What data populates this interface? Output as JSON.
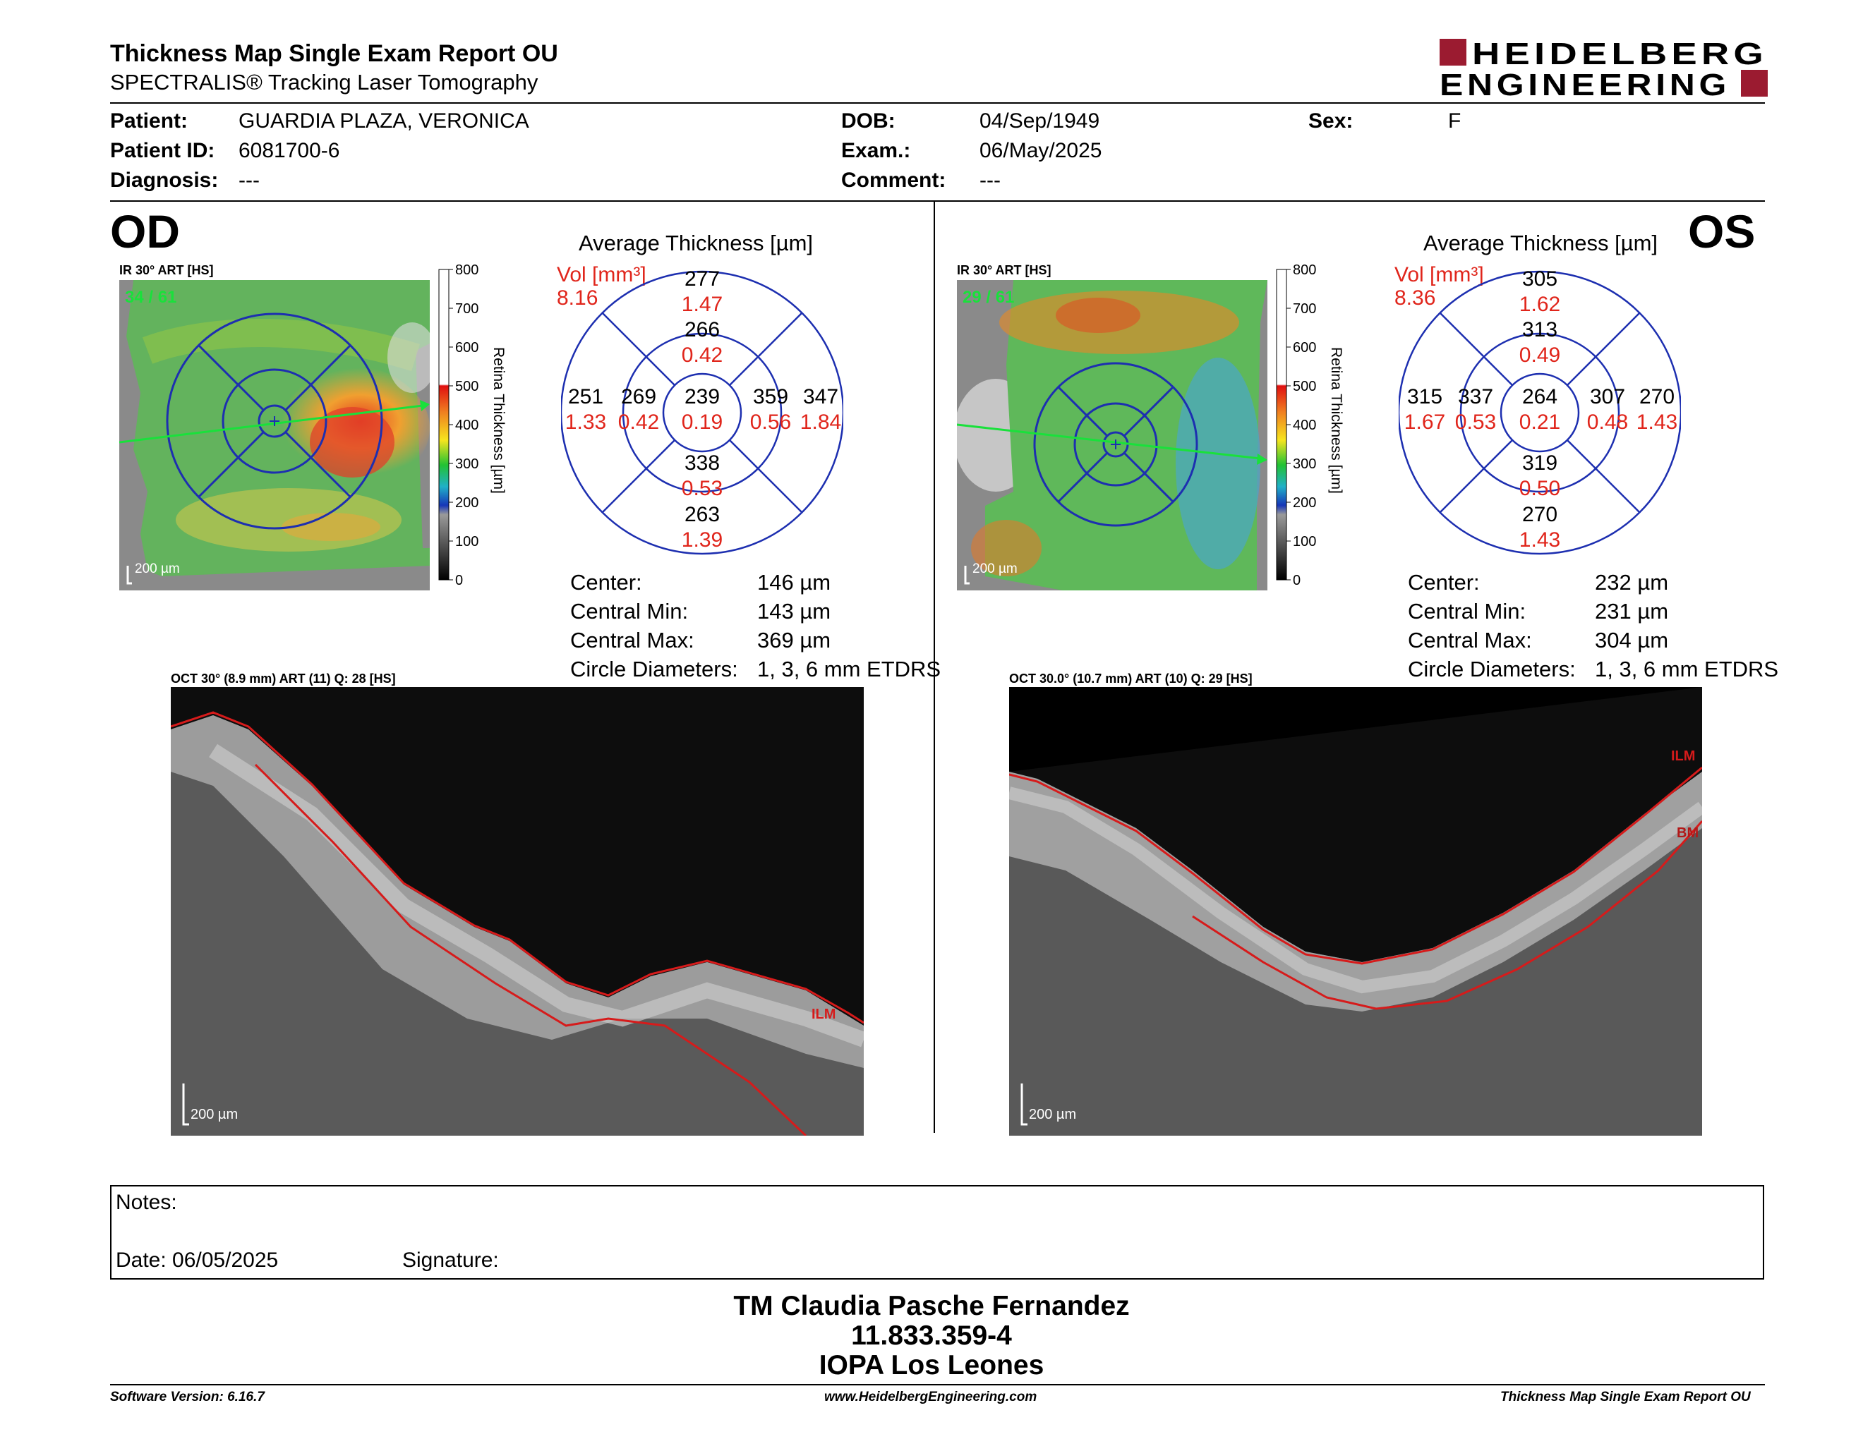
{
  "header": {
    "title": "Thickness Map Single Exam Report OU",
    "subtitle": "SPECTRALIS® Tracking Laser Tomography",
    "logo_line1": "HEIDELBERG",
    "logo_line2": "ENGINEERING",
    "brand_color": "#9b1b30"
  },
  "patient": {
    "name_label": "Patient:",
    "name": "GUARDIA PLAZA, VERONICA",
    "id_label": "Patient ID:",
    "id": "6081700-6",
    "diagnosis_label": "Diagnosis:",
    "diagnosis": "---",
    "dob_label": "DOB:",
    "dob": "04/Sep/1949",
    "exam_label": "Exam.:",
    "exam": "06/May/2025",
    "comment_label": "Comment:",
    "comment": "---",
    "sex_label": "Sex:",
    "sex": "F"
  },
  "od": {
    "eye": "OD",
    "ir_title": "IR 30° ART [HS]",
    "frames": "34 / 61",
    "map_scale": "200 µm",
    "colorbar_ticks": [
      "800",
      "700",
      "600",
      "500",
      "400",
      "300",
      "200",
      "100",
      "0"
    ],
    "colorbar_label": "Retina Thickness [µm]",
    "avg_title": "Average Thickness [µm]",
    "vol_label": "Vol [mm³]",
    "vol_total": "8.16",
    "grid": {
      "outer_sup": {
        "t": "277",
        "v": "1.47"
      },
      "inner_sup": {
        "t": "266",
        "v": "0.42"
      },
      "outer_temp": {
        "t": "251",
        "v": "1.33"
      },
      "inner_temp": {
        "t": "269",
        "v": "0.42"
      },
      "center": {
        "t": "239",
        "v": "0.19"
      },
      "inner_nas": {
        "t": "359",
        "v": "0.56"
      },
      "outer_nas": {
        "t": "347",
        "v": "1.84"
      },
      "inner_inf": {
        "t": "338",
        "v": "0.53"
      },
      "outer_inf": {
        "t": "263",
        "v": "1.39"
      }
    },
    "stats": [
      {
        "label": "Center:",
        "value": "146 µm"
      },
      {
        "label": "Central Min:",
        "value": "143 µm"
      },
      {
        "label": "Central Max:",
        "value": "369 µm"
      },
      {
        "label": "Circle Diameters:",
        "value": "1, 3, 6 mm ETDRS"
      }
    ],
    "oct_title": "OCT 30° (8.9 mm) ART (11) Q: 28 [HS]",
    "oct_scale": "200 µm",
    "oct_labels": [
      "ILM"
    ]
  },
  "os": {
    "eye": "OS",
    "ir_title": "IR 30° ART [HS]",
    "frames": "29 / 61",
    "map_scale": "200 µm",
    "colorbar_ticks": [
      "800",
      "700",
      "600",
      "500",
      "400",
      "300",
      "200",
      "100",
      "0"
    ],
    "colorbar_label": "Retina Thickness [µm]",
    "avg_title": "Average Thickness [µm]",
    "vol_label": "Vol [mm³]",
    "vol_total": "8.36",
    "grid": {
      "outer_sup": {
        "t": "305",
        "v": "1.62"
      },
      "inner_sup": {
        "t": "313",
        "v": "0.49"
      },
      "outer_temp": {
        "t": "315",
        "v": "1.67"
      },
      "inner_temp": {
        "t": "337",
        "v": "0.53"
      },
      "center": {
        "t": "264",
        "v": "0.21"
      },
      "inner_nas": {
        "t": "307",
        "v": "0.48"
      },
      "outer_nas": {
        "t": "270",
        "v": "1.43"
      },
      "inner_inf": {
        "t": "319",
        "v": "0.50"
      },
      "outer_inf": {
        "t": "270",
        "v": "1.43"
      }
    },
    "stats": [
      {
        "label": "Center:",
        "value": "232 µm"
      },
      {
        "label": "Central Min:",
        "value": "231 µm"
      },
      {
        "label": "Central Max:",
        "value": "304 µm"
      },
      {
        "label": "Circle Diameters:",
        "value": "1, 3, 6 mm ETDRS"
      }
    ],
    "oct_title": "OCT 30.0° (10.7 mm) ART (10) Q: 29 [HS]",
    "oct_scale": "200 µm",
    "oct_labels": [
      "ILM",
      "BM"
    ]
  },
  "notes": {
    "notes_label": "Notes:",
    "date_label": "Date: 06/05/2025",
    "signature_label": "Signature:"
  },
  "signer": {
    "name": "TM Claudia Pasche Fernandez",
    "id": "11.833.359-4",
    "institution": "IOPA Los Leones"
  },
  "footer": {
    "software": "Software Version: 6.16.7",
    "website": "www.HeidelbergEngineering.com",
    "report": "Thickness Map Single Exam Report OU"
  }
}
